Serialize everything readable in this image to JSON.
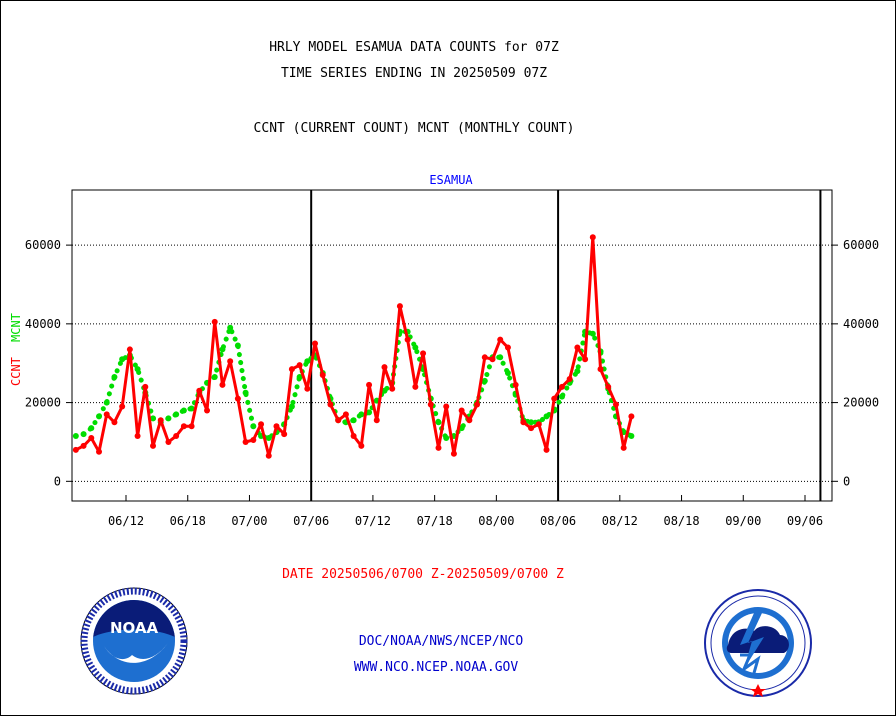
{
  "colors": {
    "ccnt": "#ff0000",
    "mcnt": "#00dd00",
    "series_label": "#0000ff",
    "date": "#ff0000",
    "footer": "#0000cc",
    "axis": "#000000"
  },
  "chart_data": {
    "type": "line",
    "title_lines": [
      "HRLY MODEL ESAMUA DATA COUNTS for 07Z",
      "TIME SERIES ENDING IN 20250509 07Z",
      "CCNT (CURRENT COUNT) MCNT (MONTHLY COUNT)"
    ],
    "series_label": "ESAMUA",
    "ylabel_left_ccnt": "CCNT",
    "ylabel_left_mcnt": "MCNT",
    "ylim": [
      -5000,
      74000
    ],
    "yticks": [
      0,
      20000,
      40000,
      60000
    ],
    "ytick_labels": [
      "0",
      "20000",
      "40000",
      "60000"
    ],
    "xlim": [
      0,
      98.5
    ],
    "xtick_positions": [
      7,
      15,
      23,
      31,
      39,
      47,
      55,
      63,
      71,
      79,
      87,
      95
    ],
    "xtick_labels": [
      "06/12",
      "06/18",
      "07/00",
      "07/06",
      "07/12",
      "07/18",
      "08/00",
      "08/06",
      "08/12",
      "08/18",
      "09/00",
      "09/06"
    ],
    "day_boundaries": [
      31,
      63,
      97
    ],
    "grid": true,
    "date_range": "DATE 20250506/0700 Z-20250509/0700 Z",
    "series": [
      {
        "name": "CCNT",
        "values": [
          8000,
          9000,
          11000,
          7500,
          17000,
          15000,
          19000,
          33500,
          11500,
          24000,
          9000,
          15500,
          10000,
          11500,
          14000,
          14000,
          23000,
          18000,
          40500,
          24500,
          30500,
          21000,
          10000,
          10500,
          14500,
          6500,
          14000,
          12000,
          28500,
          29500,
          23500,
          35000,
          27000,
          19500,
          15500,
          17000,
          11500,
          9000,
          24500,
          15500,
          29000,
          23500,
          44500,
          36000,
          24000,
          32500,
          19500,
          8500,
          19000,
          7000,
          18000,
          15500,
          19500,
          31500,
          31000,
          36000,
          34000,
          24500,
          15000,
          13500,
          14500,
          8000,
          21000,
          24000,
          26000,
          34000,
          31000,
          62000,
          28500,
          24000,
          19500,
          8500,
          16500
        ]
      },
      {
        "name": "MCNT",
        "values": [
          11500,
          12000,
          13500,
          16500,
          20000,
          26500,
          31000,
          32000,
          28500,
          22500,
          16000,
          15000,
          16000,
          17000,
          18000,
          18500,
          22500,
          25000,
          26500,
          33500,
          39000,
          34500,
          22500,
          14000,
          11500,
          11000,
          12500,
          14500,
          19000,
          26500,
          30500,
          32000,
          27500,
          21000,
          15500,
          15000,
          15500,
          17000,
          17500,
          20500,
          23000,
          25000,
          38000,
          38000,
          34000,
          28500,
          21000,
          15000,
          11000,
          11500,
          13500,
          16500,
          20000,
          25500,
          31500,
          31500,
          27500,
          22000,
          15500,
          15000,
          15000,
          16500,
          18000,
          21500,
          25000,
          28000,
          38000,
          37500,
          33000,
          23500,
          16500,
          12500,
          11500
        ]
      }
    ]
  },
  "footer": {
    "doc_line": "DOC/NOAA/NWS/NCEP/NCO",
    "url": "WWW.NCO.NCEP.NOAA.GOV"
  },
  "logos": {
    "noaa_text": "NOAA",
    "nws_icon": "nws-logo-icon"
  }
}
